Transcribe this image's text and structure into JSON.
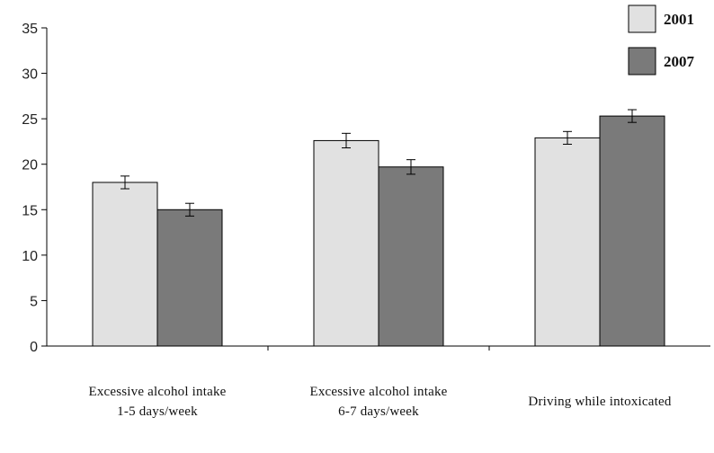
{
  "chart_data": {
    "type": "bar",
    "categories": [
      [
        "Excessive alcohol intake",
        "1-5 days/week"
      ],
      [
        "Excessive alcohol intake",
        "6-7 days/week"
      ],
      [
        "Driving while intoxicated"
      ]
    ],
    "series": [
      {
        "name": "2001",
        "values": [
          18.0,
          22.6,
          22.9
        ],
        "errors": [
          0.7,
          0.8,
          0.7
        ],
        "color": "#e1e1e1"
      },
      {
        "name": "2007",
        "values": [
          15.0,
          19.7,
          25.3
        ],
        "errors": [
          0.7,
          0.8,
          0.7
        ],
        "color": "#7a7a7a"
      }
    ],
    "ylim": [
      0,
      35
    ],
    "yticks": [
      0,
      5,
      10,
      15,
      20,
      25,
      30,
      35
    ],
    "legend_position": "top-right",
    "grid": false,
    "bar_stroke": "#000000",
    "error_bar_color": "#000000"
  }
}
